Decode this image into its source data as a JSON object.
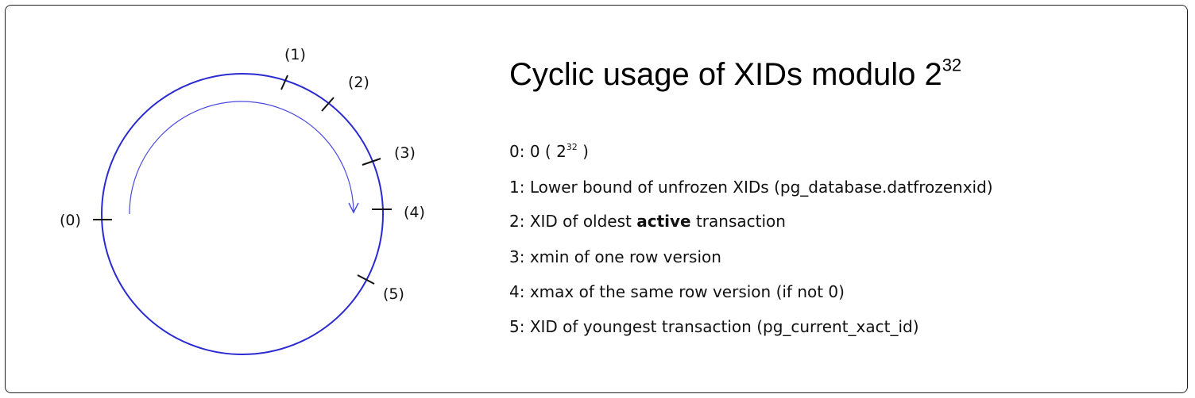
{
  "diagram": {
    "circle_color": "#2a2ad0",
    "tick_labels": [
      "(0)",
      "(1)",
      "(2)",
      "(3)",
      "(4)",
      "(5)"
    ]
  },
  "title": {
    "text": "Cyclic usage of XIDs modulo 2",
    "exponent": "32"
  },
  "legend": [
    {
      "prefix": "0: 0 ( 2",
      "exponent": "32",
      "suffix": " )"
    },
    {
      "text": "1: Lower bound of unfrozen XIDs (pg_database.datfrozenxid)"
    },
    {
      "before": "2: XID of oldest ",
      "bold": "active",
      "after": " transaction"
    },
    {
      "text": "3: xmin of one row version"
    },
    {
      "text": "4: xmax of the same row version (if not 0)"
    },
    {
      "text": "5: XID of youngest transaction (pg_current_xact_id)"
    }
  ]
}
